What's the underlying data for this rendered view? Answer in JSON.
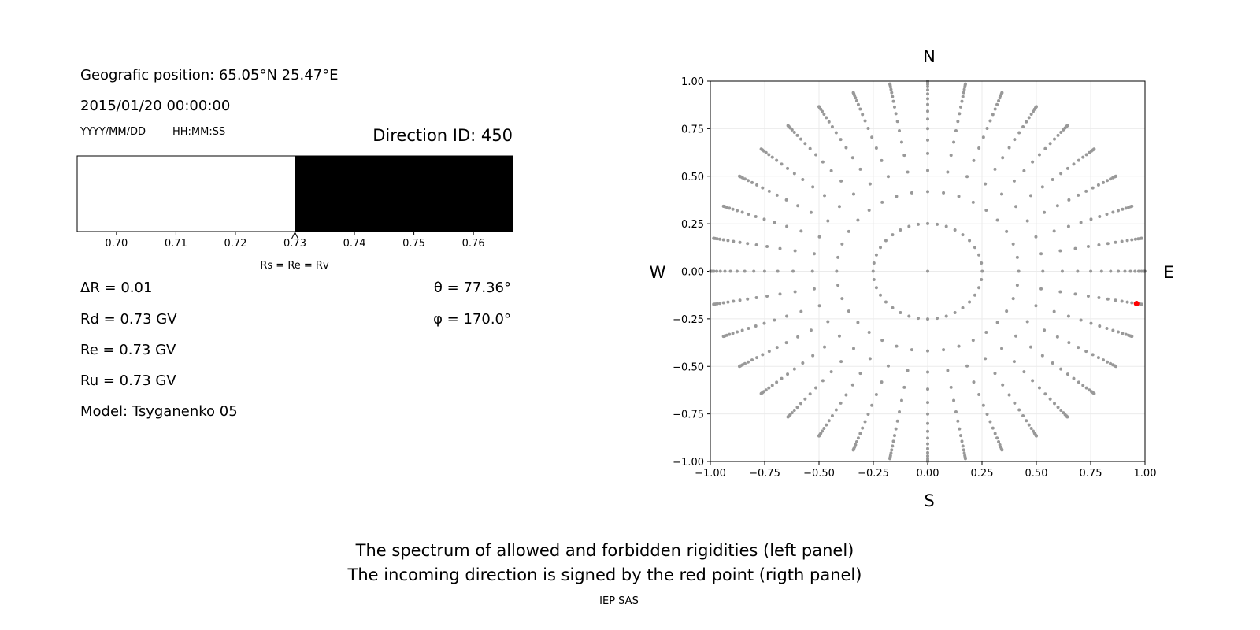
{
  "left_panel": {
    "position": "Geografic position: 65.05°N 25.47°E",
    "datetime": "2015/01/20 00:00:00",
    "date_format": "YYYY/MM/DD",
    "time_format": "HH:MM:SS",
    "direction_id": "Direction ID: 450",
    "delta_r": "ΔR = 0.01",
    "rd": "Rd = 0.73 GV",
    "re": "Re = 0.73 GV",
    "ru": "Ru = 0.73 GV",
    "model": "Model: Tsyganenko 05",
    "theta": "θ = 77.36°",
    "phi": "φ = 170.0°",
    "arrow_label": "Rs = Re = Rv"
  },
  "footer": {
    "line1": "The spectrum of allowed and forbidden rigidities (left panel)",
    "line2": "The incoming direction is signed by the red point (rigth panel)",
    "credit": "IEP SAS"
  },
  "chart_data": [
    {
      "type": "bar",
      "description_of_axis": "rigidity spectrum",
      "xlim": [
        0.6934,
        0.7666
      ],
      "xticks": [
        "0.70",
        "0.71",
        "0.72",
        "0.73",
        "0.74",
        "0.75",
        "0.76"
      ],
      "segments": [
        {
          "from": 0.6934,
          "to": 0.73,
          "state": "allowed",
          "color": "#ffffff"
        },
        {
          "from": 0.73,
          "to": 0.7666,
          "state": "forbidden",
          "color": "#000000"
        }
      ],
      "arrow_at": 0.73
    },
    {
      "type": "scatter",
      "xlim": [
        -1,
        1
      ],
      "ylim": [
        -1,
        1
      ],
      "xticks": [
        "−1.00",
        "−0.75",
        "−0.50",
        "−0.25",
        "0.00",
        "0.25",
        "0.50",
        "0.75",
        "1.00"
      ],
      "yticks": [
        "−1.00",
        "−0.75",
        "−0.50",
        "−0.25",
        "0.00",
        "0.25",
        "0.50",
        "0.75",
        "1.00"
      ],
      "compass": {
        "north": "N",
        "south": "S",
        "west": "W",
        "east": "E"
      },
      "grid": true,
      "grid_azimuth_step_deg": 10,
      "grid_cos_zenith": [
        0.968,
        0.908,
        0.848,
        0.785,
        0.724,
        0.661,
        0.6,
        0.54,
        0.48,
        0.42,
        0.36,
        0.3,
        0.24,
        0.18,
        0.12,
        0.06,
        0.01
      ],
      "grid_color": "#999999",
      "selected": {
        "x": 0.961,
        "y": -0.17,
        "color": "#ff0000"
      }
    }
  ]
}
